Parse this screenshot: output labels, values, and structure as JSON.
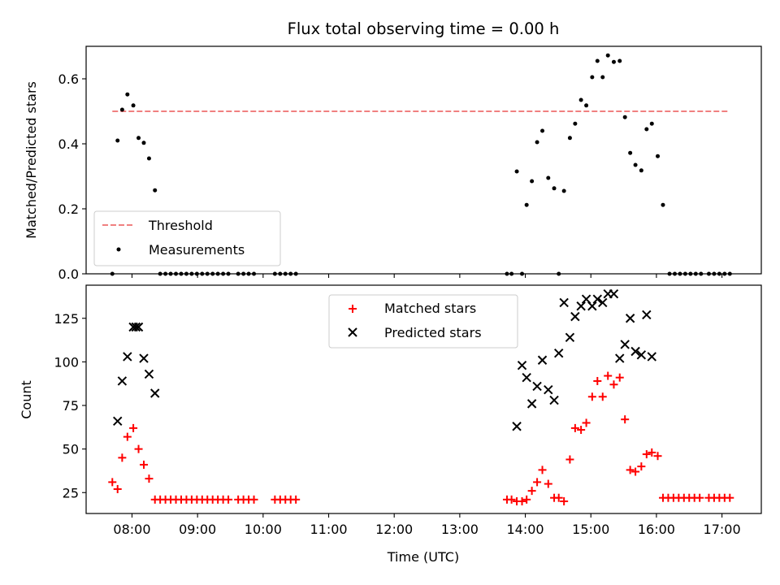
{
  "chart_data": [
    {
      "type": "scatter",
      "title": "Flux total observing time = 0.00 h",
      "xlabel": "",
      "ylabel": "Matched/Predicted stars",
      "xlim": [
        7.3,
        17.6
      ],
      "ylim": [
        0.0,
        0.7
      ],
      "yticks": [
        0.0,
        0.2,
        0.4,
        0.6
      ],
      "ytick_labels": [
        "0.0",
        "0.2",
        "0.4",
        "0.6"
      ],
      "legend_position": "lower-left",
      "legend": [
        "Threshold",
        "Measurements"
      ],
      "series": [
        {
          "name": "Threshold",
          "kind": "dashed-line",
          "color": "#f08080",
          "x": [
            7.7,
            17.1
          ],
          "y": [
            0.5,
            0.5
          ]
        },
        {
          "name": "Measurements",
          "kind": "dot",
          "color": "#000000",
          "points": [
            [
              7.7,
              0.0
            ],
            [
              7.78,
              0.41
            ],
            [
              7.85,
              0.505
            ],
            [
              7.93,
              0.552
            ],
            [
              8.02,
              0.518
            ],
            [
              8.1,
              0.418
            ],
            [
              8.18,
              0.403
            ],
            [
              8.26,
              0.355
            ],
            [
              8.35,
              0.257
            ],
            [
              8.43,
              0.0
            ],
            [
              8.51,
              0.0
            ],
            [
              8.59,
              0.0
            ],
            [
              8.67,
              0.0
            ],
            [
              8.75,
              0.0
            ],
            [
              8.83,
              0.0
            ],
            [
              8.91,
              0.0
            ],
            [
              8.99,
              0.0
            ],
            [
              9.07,
              0.0
            ],
            [
              9.15,
              0.0
            ],
            [
              9.23,
              0.0
            ],
            [
              9.31,
              0.0
            ],
            [
              9.39,
              0.0
            ],
            [
              9.47,
              0.0
            ],
            [
              9.62,
              0.0
            ],
            [
              9.7,
              0.0
            ],
            [
              9.78,
              0.0
            ],
            [
              9.86,
              0.0
            ],
            [
              10.18,
              0.0
            ],
            [
              10.26,
              0.0
            ],
            [
              10.34,
              0.0
            ],
            [
              10.42,
              0.0
            ],
            [
              10.5,
              0.0
            ],
            [
              13.72,
              0.0
            ],
            [
              13.79,
              0.0
            ],
            [
              13.87,
              0.315
            ],
            [
              13.95,
              0.0
            ],
            [
              14.02,
              0.212
            ],
            [
              14.1,
              0.285
            ],
            [
              14.18,
              0.405
            ],
            [
              14.26,
              0.44
            ],
            [
              14.35,
              0.295
            ],
            [
              14.44,
              0.263
            ],
            [
              14.51,
              0.0
            ],
            [
              14.59,
              0.255
            ],
            [
              14.68,
              0.418
            ],
            [
              14.76,
              0.462
            ],
            [
              14.85,
              0.535
            ],
            [
              14.93,
              0.518
            ],
            [
              15.02,
              0.605
            ],
            [
              15.1,
              0.655
            ],
            [
              15.18,
              0.605
            ],
            [
              15.26,
              0.672
            ],
            [
              15.35,
              0.652
            ],
            [
              15.44,
              0.655
            ],
            [
              15.52,
              0.482
            ],
            [
              15.6,
              0.372
            ],
            [
              15.68,
              0.335
            ],
            [
              15.77,
              0.318
            ],
            [
              15.85,
              0.445
            ],
            [
              15.93,
              0.462
            ],
            [
              16.02,
              0.362
            ],
            [
              16.1,
              0.212
            ],
            [
              16.2,
              0.0
            ],
            [
              16.28,
              0.0
            ],
            [
              16.36,
              0.0
            ],
            [
              16.44,
              0.0
            ],
            [
              16.52,
              0.0
            ],
            [
              16.6,
              0.0
            ],
            [
              16.68,
              0.0
            ],
            [
              16.8,
              0.0
            ],
            [
              16.88,
              0.0
            ],
            [
              16.96,
              0.0
            ],
            [
              17.04,
              0.0
            ],
            [
              17.12,
              0.0
            ]
          ]
        }
      ]
    },
    {
      "type": "scatter",
      "title": "",
      "xlabel": "Time (UTC)",
      "ylabel": "Count",
      "xlim": [
        7.3,
        17.6
      ],
      "ylim": [
        13,
        144
      ],
      "yticks": [
        25,
        50,
        75,
        100,
        125
      ],
      "ytick_labels": [
        "25",
        "50",
        "75",
        "100",
        "125"
      ],
      "xticks": [
        8,
        9,
        10,
        11,
        12,
        13,
        14,
        15,
        16,
        17
      ],
      "xtick_labels": [
        "08:00",
        "09:00",
        "10:00",
        "11:00",
        "12:00",
        "13:00",
        "14:00",
        "15:00",
        "16:00",
        "17:00"
      ],
      "legend_position": "upper-center",
      "legend": [
        "Matched stars",
        "Predicted stars"
      ],
      "series": [
        {
          "name": "Matched stars",
          "marker": "plus",
          "color": "#ff0000",
          "points": [
            [
              7.7,
              31
            ],
            [
              7.78,
              27
            ],
            [
              7.85,
              45
            ],
            [
              7.93,
              57
            ],
            [
              8.02,
              62
            ],
            [
              8.1,
              50
            ],
            [
              8.18,
              41
            ],
            [
              8.26,
              33
            ],
            [
              8.35,
              21
            ],
            [
              8.43,
              21
            ],
            [
              8.51,
              21
            ],
            [
              8.59,
              21
            ],
            [
              8.67,
              21
            ],
            [
              8.75,
              21
            ],
            [
              8.83,
              21
            ],
            [
              8.91,
              21
            ],
            [
              8.99,
              21
            ],
            [
              9.07,
              21
            ],
            [
              9.15,
              21
            ],
            [
              9.23,
              21
            ],
            [
              9.31,
              21
            ],
            [
              9.39,
              21
            ],
            [
              9.47,
              21
            ],
            [
              9.62,
              21
            ],
            [
              9.7,
              21
            ],
            [
              9.78,
              21
            ],
            [
              9.86,
              21
            ],
            [
              10.18,
              21
            ],
            [
              10.26,
              21
            ],
            [
              10.34,
              21
            ],
            [
              10.42,
              21
            ],
            [
              10.5,
              21
            ],
            [
              13.72,
              21
            ],
            [
              13.79,
              21
            ],
            [
              13.87,
              20
            ],
            [
              13.95,
              20
            ],
            [
              14.02,
              21
            ],
            [
              14.1,
              26
            ],
            [
              14.18,
              31
            ],
            [
              14.26,
              38
            ],
            [
              14.35,
              30
            ],
            [
              14.44,
              22
            ],
            [
              14.51,
              22
            ],
            [
              14.59,
              20
            ],
            [
              14.68,
              44
            ],
            [
              14.76,
              62
            ],
            [
              14.85,
              61
            ],
            [
              14.93,
              65
            ],
            [
              15.02,
              80
            ],
            [
              15.1,
              89
            ],
            [
              15.18,
              80
            ],
            [
              15.26,
              92
            ],
            [
              15.35,
              87
            ],
            [
              15.44,
              91
            ],
            [
              15.52,
              67
            ],
            [
              15.6,
              38
            ],
            [
              15.68,
              37
            ],
            [
              15.77,
              40
            ],
            [
              15.85,
              47
            ],
            [
              15.93,
              48
            ],
            [
              16.02,
              46
            ],
            [
              16.1,
              22
            ],
            [
              16.18,
              22
            ],
            [
              16.26,
              22
            ],
            [
              16.34,
              22
            ],
            [
              16.42,
              22
            ],
            [
              16.5,
              22
            ],
            [
              16.58,
              22
            ],
            [
              16.66,
              22
            ],
            [
              16.8,
              22
            ],
            [
              16.88,
              22
            ],
            [
              16.96,
              22
            ],
            [
              17.04,
              22
            ],
            [
              17.12,
              22
            ]
          ]
        },
        {
          "name": "Predicted stars",
          "marker": "x",
          "color": "#000000",
          "points": [
            [
              7.78,
              66
            ],
            [
              7.85,
              89
            ],
            [
              7.93,
              103
            ],
            [
              8.02,
              120
            ],
            [
              8.06,
              120
            ],
            [
              8.1,
              120
            ],
            [
              8.18,
              102
            ],
            [
              8.26,
              93
            ],
            [
              8.35,
              82
            ],
            [
              13.87,
              63
            ],
            [
              13.95,
              98
            ],
            [
              14.02,
              91
            ],
            [
              14.1,
              76
            ],
            [
              14.18,
              86
            ],
            [
              14.26,
              101
            ],
            [
              14.35,
              84
            ],
            [
              14.44,
              78
            ],
            [
              14.51,
              105
            ],
            [
              14.59,
              134
            ],
            [
              14.68,
              114
            ],
            [
              14.76,
              126
            ],
            [
              14.85,
              132
            ],
            [
              14.93,
              136
            ],
            [
              15.02,
              132
            ],
            [
              15.1,
              136
            ],
            [
              15.18,
              134
            ],
            [
              15.26,
              139
            ],
            [
              15.35,
              139
            ],
            [
              15.44,
              102
            ],
            [
              15.52,
              110
            ],
            [
              15.6,
              125
            ],
            [
              15.68,
              106
            ],
            [
              15.77,
              104
            ],
            [
              15.85,
              127
            ],
            [
              15.93,
              103
            ]
          ]
        }
      ]
    }
  ]
}
